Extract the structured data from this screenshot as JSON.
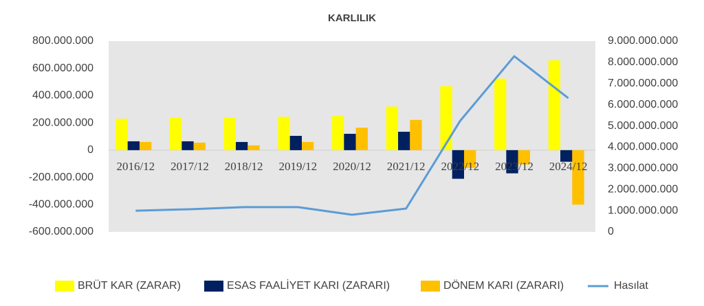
{
  "chart_data": {
    "type": "bar",
    "title": "KARLILIK",
    "categories": [
      "2016/12",
      "2017/12",
      "2018/12",
      "2019/12",
      "2020/12",
      "2021/12",
      "2022/12",
      "2023/12",
      "2024/12"
    ],
    "series": [
      {
        "name": "BRÜT KAR (ZARAR)",
        "color": "#FFFF00",
        "values": [
          230000000,
          240000000,
          240000000,
          245000000,
          250000000,
          320000000,
          470000000,
          525000000,
          660000000
        ]
      },
      {
        "name": "ESAS FAALİYET KARI (ZARARI)",
        "color": "#002060",
        "values": [
          65000000,
          65000000,
          60000000,
          105000000,
          120000000,
          135000000,
          -210000000,
          -170000000,
          -85000000
        ]
      },
      {
        "name": "DÖNEM KARI (ZARARI)",
        "color": "#FFC000",
        "values": [
          60000000,
          55000000,
          35000000,
          60000000,
          165000000,
          222000000,
          -130000000,
          -105000000,
          -400000000
        ]
      },
      {
        "name": "Hasılat",
        "color": "#5B9BD5",
        "type": "line",
        "axis": "y2",
        "values": [
          1000000000,
          1070000000,
          1170000000,
          1170000000,
          810000000,
          1100000000,
          5240000000,
          8290000000,
          6310000000
        ]
      }
    ],
    "ylim": [
      -600000000,
      800000000
    ],
    "yticks": [
      {
        "value": -600000000,
        "label": "-600.000.000"
      },
      {
        "value": -400000000,
        "label": "-400.000.000"
      },
      {
        "value": -200000000,
        "label": "-200.000.000"
      },
      0,
      {
        "value": 200000000,
        "label": "200.000.000"
      },
      {
        "value": 400000000,
        "label": "400.000.000"
      },
      {
        "value": 600000000,
        "label": "600.000.000"
      },
      {
        "value": 800000000,
        "label": "800.000.000"
      }
    ],
    "y2lim": [
      0,
      9000000000
    ],
    "y2ticks": [
      0,
      {
        "value": 1000000000,
        "label": "1.000.000.000"
      },
      {
        "value": 2000000000,
        "label": "2.000.000.000"
      },
      {
        "value": 3000000000,
        "label": "3.000.000.000"
      },
      {
        "value": 4000000000,
        "label": "4.000.000.000"
      },
      {
        "value": 5000000000,
        "label": "5.000.000.000"
      },
      {
        "value": 6000000000,
        "label": "6.000.000.000"
      },
      {
        "value": 7000000000,
        "label": "7.000.000.000"
      },
      {
        "value": 8000000000,
        "label": "8.000.000.000"
      },
      {
        "value": 9000000000,
        "label": "9.000.000.000"
      }
    ],
    "legend": "bottom"
  }
}
